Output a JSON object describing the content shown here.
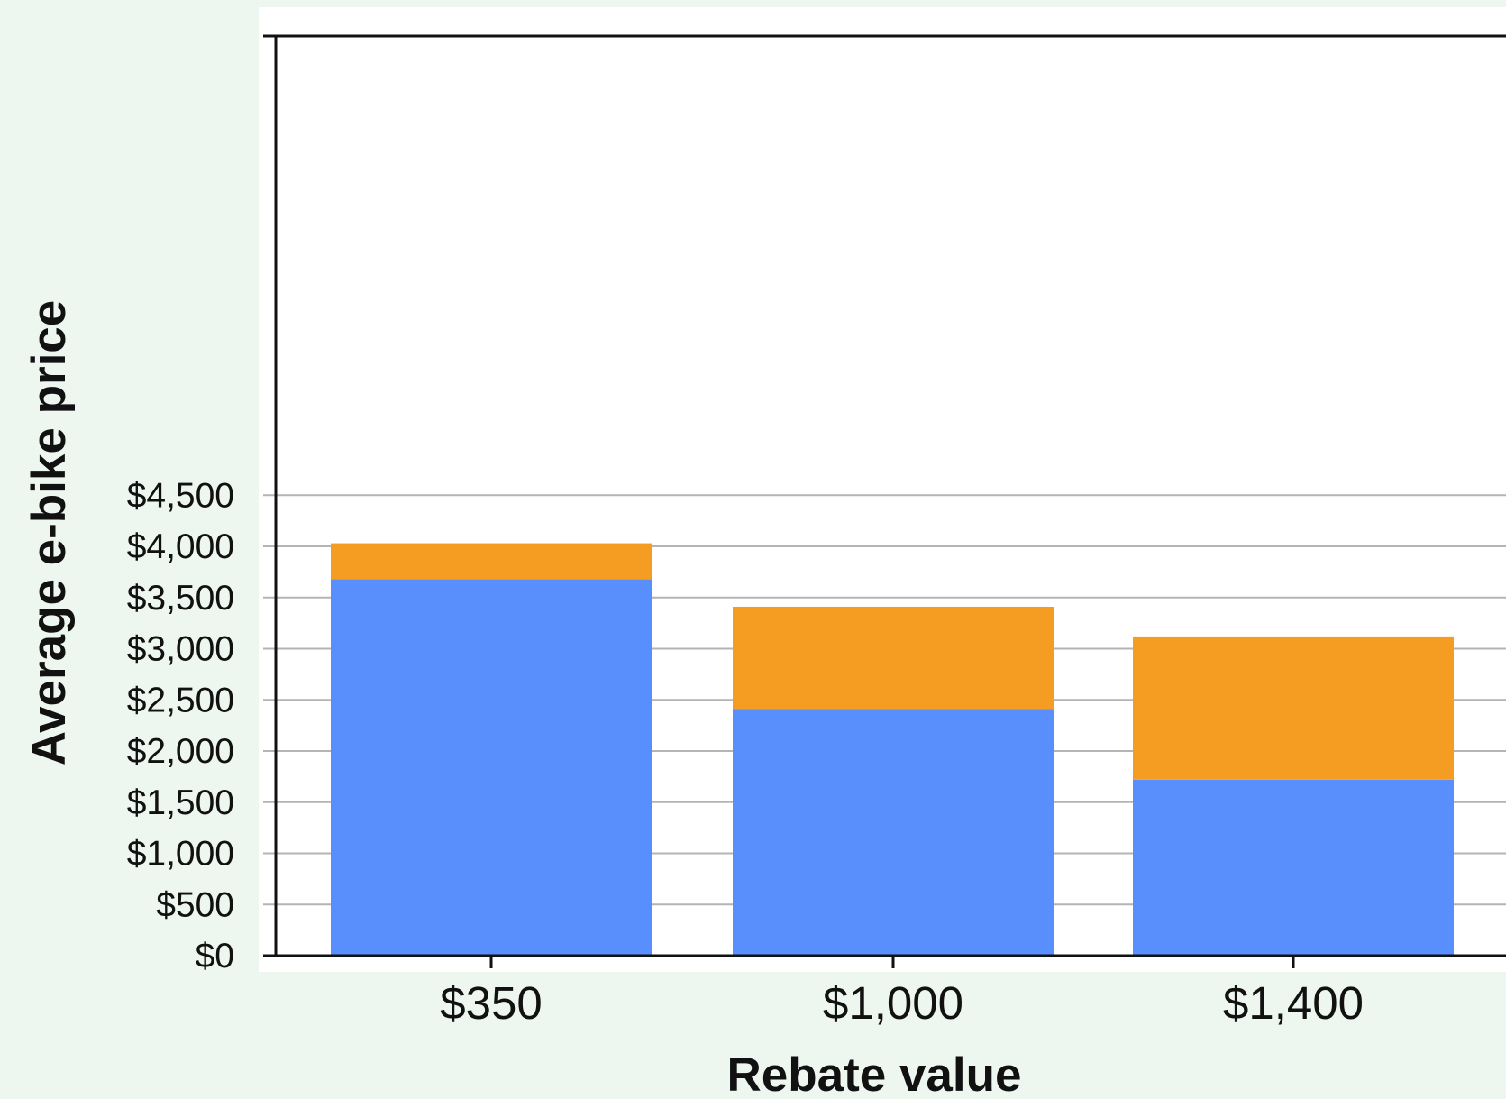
{
  "chart_data": {
    "type": "bar",
    "stacked": true,
    "categories": [
      "$350",
      "$1,000",
      "$1,400"
    ],
    "series": [
      {
        "values": [
          3680,
          2410,
          1720
        ]
      },
      {
        "values": [
          350,
          1000,
          1400
        ]
      }
    ],
    "xlabel": "Rebate value",
    "ylabel": "Average e-bike price",
    "ylim": [
      0,
      4500
    ],
    "yticks": [
      0,
      500,
      1000,
      1500,
      2000,
      2500,
      3000,
      3500,
      4000,
      4500
    ],
    "ytick_labels": [
      "$0",
      "$500",
      "$1,000",
      "$1,500",
      "$2,000",
      "$2,500",
      "$3,000",
      "$3,500",
      "$4,000",
      "$4,500"
    ],
    "grid": true,
    "legend": "none",
    "colors": {
      "series": [
        "#598ffc",
        "#f59c22"
      ],
      "plot_background": "#ffffff",
      "page_background": "#edf6ef",
      "gridline": "#b4b4b4",
      "axis": "#111111"
    }
  }
}
